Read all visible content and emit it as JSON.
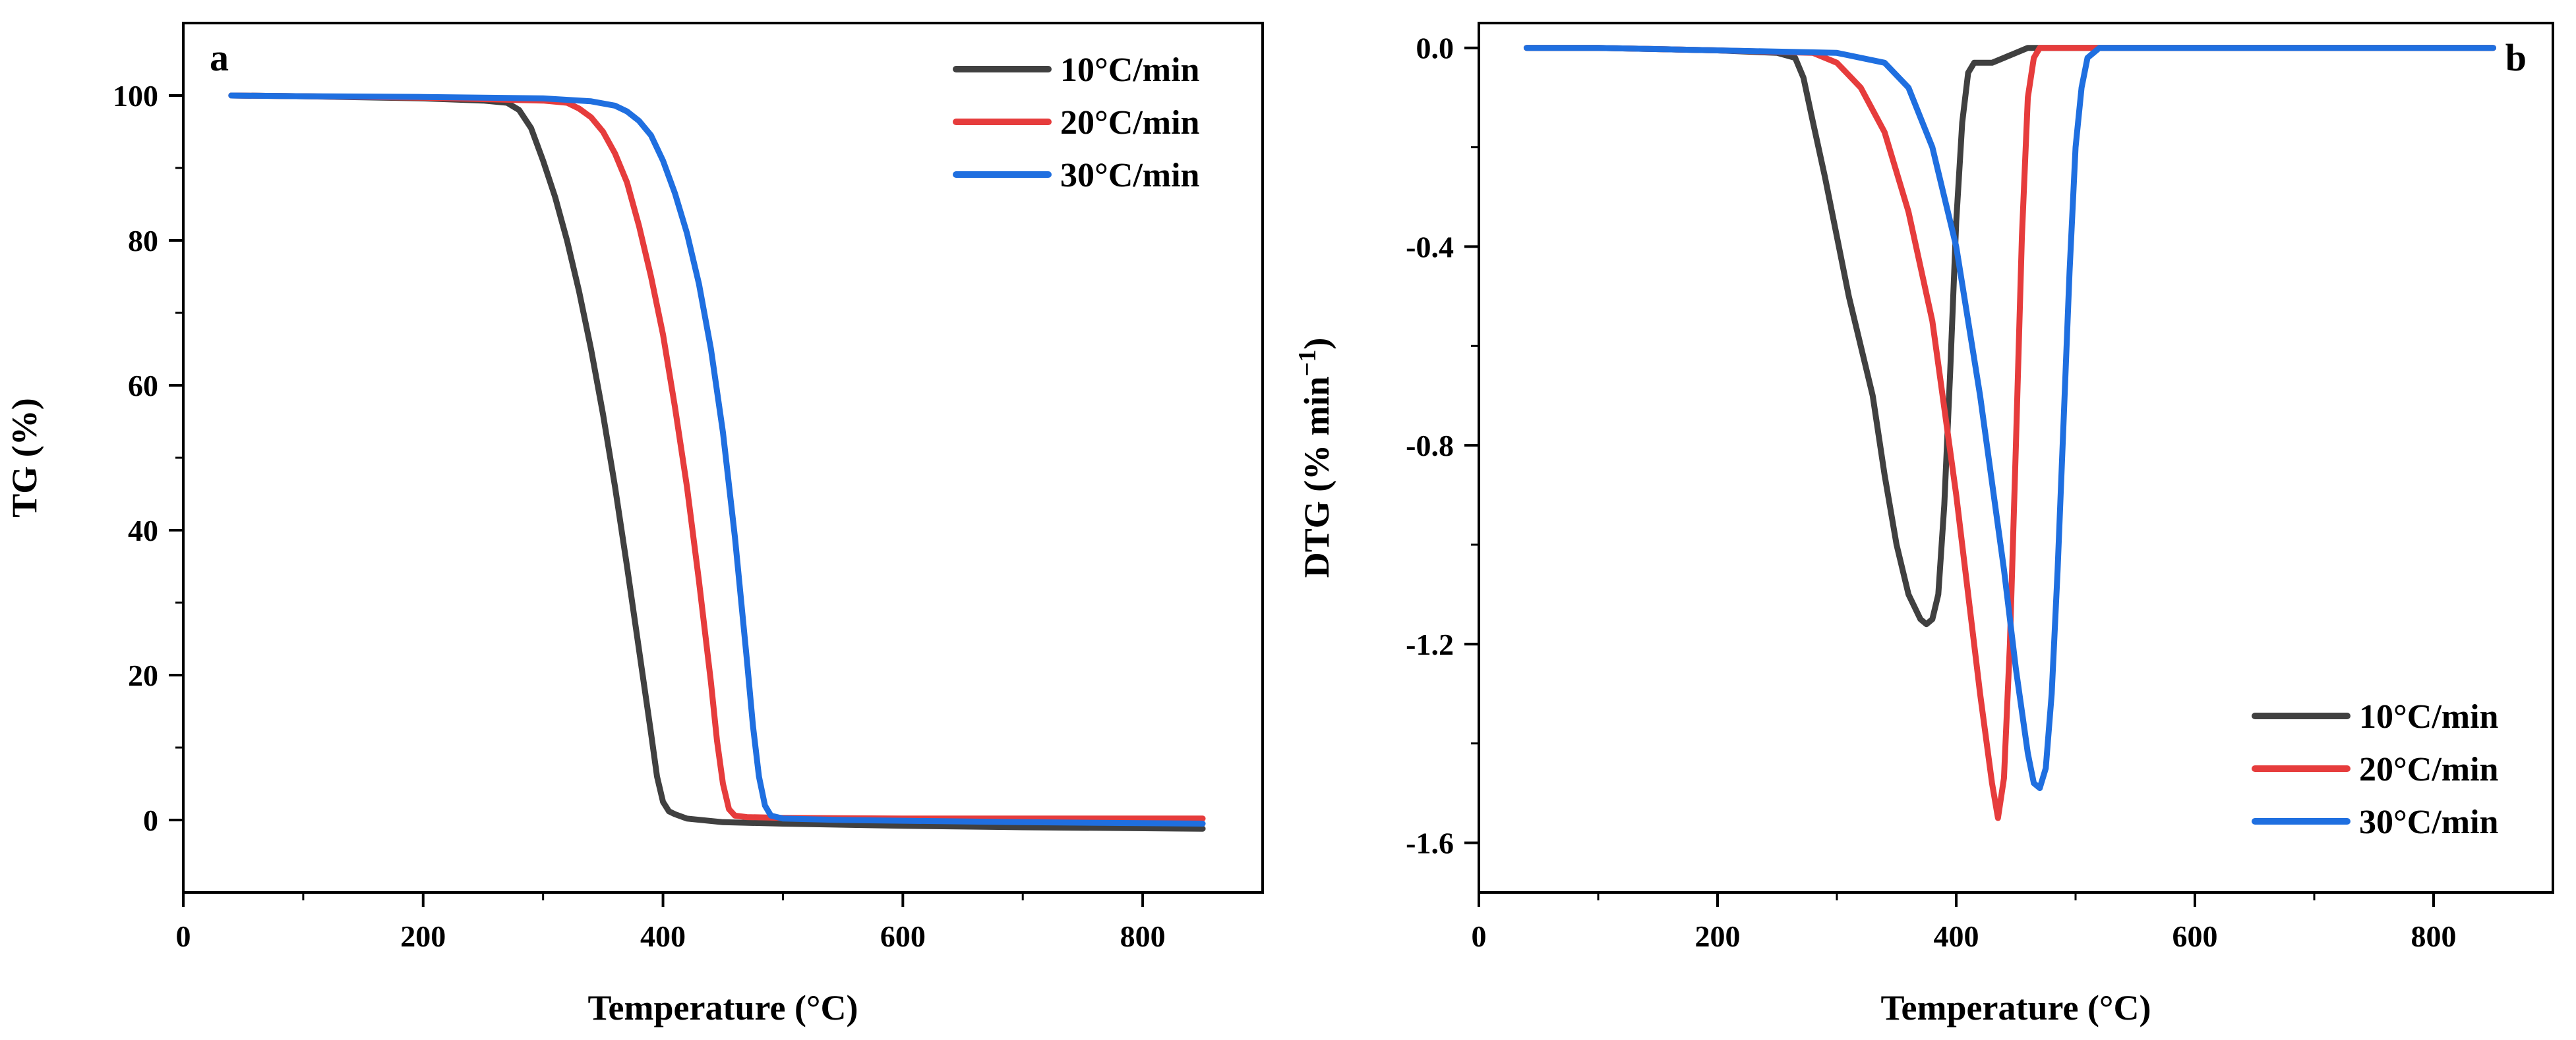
{
  "chart_data": [
    {
      "type": "line",
      "panel_label": "a",
      "xlabel": "Temperature (°C)",
      "ylabel": "TG (%)",
      "xlim": [
        0,
        900
      ],
      "ylim": [
        -10,
        110
      ],
      "xticks": [
        0,
        200,
        400,
        600,
        800
      ],
      "yticks": [
        0,
        20,
        40,
        60,
        80,
        100
      ],
      "legend_position": "top-right",
      "series": [
        {
          "name": "10°C/min",
          "color": "#404040",
          "x": [
            40,
            100,
            200,
            250,
            270,
            280,
            290,
            300,
            310,
            320,
            330,
            340,
            350,
            360,
            370,
            380,
            390,
            395,
            400,
            405,
            410,
            420,
            450,
            500,
            600,
            700,
            850
          ],
          "y": [
            100,
            99.9,
            99.6,
            99.3,
            99.0,
            98.0,
            95.5,
            91.0,
            86.0,
            80.0,
            73.0,
            65.0,
            56.0,
            46.0,
            35.0,
            23.5,
            12.0,
            6.0,
            2.5,
            1.2,
            0.8,
            0.2,
            -0.3,
            -0.5,
            -0.8,
            -1.0,
            -1.2
          ]
        },
        {
          "name": "20°C/min",
          "color": "#e63c3c",
          "x": [
            40,
            100,
            200,
            250,
            300,
            320,
            330,
            340,
            350,
            360,
            370,
            380,
            390,
            400,
            410,
            420,
            430,
            440,
            445,
            450,
            455,
            460,
            470,
            500,
            600,
            700,
            850
          ],
          "y": [
            100,
            99.9,
            99.7,
            99.5,
            99.3,
            99.0,
            98.2,
            97.0,
            95.0,
            92.0,
            88.0,
            82.0,
            75.0,
            67.0,
            57.0,
            46.0,
            33.0,
            19.0,
            11.0,
            5.0,
            1.5,
            0.6,
            0.4,
            0.3,
            0.2,
            0.2,
            0.2
          ]
        },
        {
          "name": "30°C/min",
          "color": "#1f6fe0",
          "x": [
            40,
            100,
            200,
            300,
            340,
            360,
            370,
            380,
            390,
            400,
            410,
            420,
            430,
            440,
            450,
            460,
            470,
            475,
            480,
            485,
            490,
            500,
            550,
            600,
            700,
            850
          ],
          "y": [
            100,
            99.9,
            99.8,
            99.6,
            99.2,
            98.6,
            97.8,
            96.5,
            94.5,
            91.0,
            86.5,
            81.0,
            74.0,
            65.0,
            53.5,
            39.0,
            22.0,
            13.0,
            6.0,
            2.0,
            0.6,
            0.2,
            0.0,
            -0.1,
            -0.3,
            -0.5
          ]
        }
      ]
    },
    {
      "type": "line",
      "panel_label": "b",
      "xlabel": "Temperature (°C)",
      "ylabel_main": "DTG (% min",
      "ylabel_sup": "−1",
      "ylabel_close": ")",
      "xlim": [
        0,
        900
      ],
      "ylim": [
        -1.7,
        0.05
      ],
      "xticks": [
        0,
        200,
        400,
        600,
        800
      ],
      "yticks": [
        -1.6,
        -1.2,
        -0.8,
        -0.4,
        0.0
      ],
      "yticklabels": [
        "-1.6",
        "-1.2",
        "-0.8",
        "-0.4",
        "0.0"
      ],
      "legend_position": "bottom-right",
      "series": [
        {
          "name": "10°C/min",
          "color": "#404040",
          "x": [
            40,
            100,
            200,
            250,
            265,
            272,
            280,
            290,
            300,
            310,
            320,
            330,
            340,
            350,
            360,
            370,
            375,
            380,
            385,
            390,
            395,
            400,
            405,
            410,
            415,
            420,
            430,
            440,
            460,
            480,
            500,
            600,
            700,
            850
          ],
          "y": [
            0.0,
            0.0,
            -0.005,
            -0.01,
            -0.02,
            -0.06,
            -0.15,
            -0.26,
            -0.38,
            -0.5,
            -0.6,
            -0.7,
            -0.86,
            -1.0,
            -1.1,
            -1.15,
            -1.16,
            -1.15,
            -1.1,
            -0.92,
            -0.65,
            -0.35,
            -0.15,
            -0.05,
            -0.03,
            -0.03,
            -0.03,
            -0.02,
            0.0,
            0.0,
            0.0,
            0.0,
            0.0,
            0.0
          ]
        },
        {
          "name": "20°C/min",
          "color": "#e63c3c",
          "x": [
            40,
            100,
            200,
            280,
            300,
            320,
            340,
            360,
            380,
            400,
            410,
            420,
            430,
            435,
            440,
            445,
            450,
            455,
            460,
            465,
            470,
            480,
            500,
            600,
            700,
            850
          ],
          "y": [
            0.0,
            0.0,
            -0.005,
            -0.01,
            -0.03,
            -0.08,
            -0.17,
            -0.33,
            -0.55,
            -0.9,
            -1.1,
            -1.3,
            -1.48,
            -1.55,
            -1.47,
            -1.2,
            -0.8,
            -0.38,
            -0.1,
            -0.02,
            0.0,
            0.0,
            0.0,
            0.0,
            0.0,
            0.0
          ]
        },
        {
          "name": "30°C/min",
          "color": "#1f6fe0",
          "x": [
            40,
            100,
            200,
            300,
            340,
            360,
            380,
            400,
            420,
            440,
            450,
            460,
            465,
            470,
            475,
            480,
            485,
            490,
            495,
            500,
            505,
            510,
            520,
            600,
            700,
            850
          ],
          "y": [
            0.0,
            0.0,
            -0.005,
            -0.01,
            -0.03,
            -0.08,
            -0.2,
            -0.4,
            -0.7,
            -1.05,
            -1.25,
            -1.42,
            -1.48,
            -1.49,
            -1.45,
            -1.3,
            -1.05,
            -0.75,
            -0.45,
            -0.2,
            -0.08,
            -0.02,
            0.0,
            0.0,
            0.0,
            0.0
          ]
        }
      ]
    }
  ]
}
